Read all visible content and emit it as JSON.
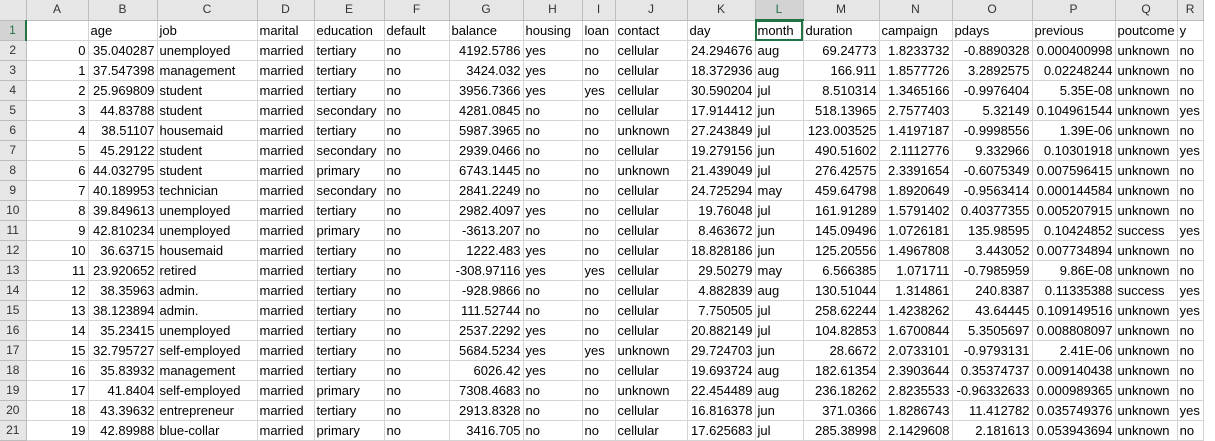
{
  "columns": [
    "A",
    "B",
    "C",
    "D",
    "E",
    "F",
    "G",
    "H",
    "I",
    "J",
    "K",
    "L",
    "M",
    "N",
    "O",
    "P",
    "Q",
    "R"
  ],
  "numeric_columns": [
    0,
    1,
    6,
    10,
    12,
    13,
    14,
    15
  ],
  "active_cell": {
    "row": 0,
    "col": 11
  },
  "rows": [
    [
      "",
      "age",
      "job",
      "marital",
      "education",
      "default",
      "balance",
      "housing",
      "loan",
      "contact",
      "day",
      "month",
      "duration",
      "campaign",
      "pdays",
      "previous",
      "poutcome",
      "y"
    ],
    [
      "0",
      "35.040287",
      "unemployed",
      "married",
      "tertiary",
      "no",
      "4192.5786",
      "yes",
      "no",
      "cellular",
      "24.294676",
      "aug",
      "69.24773",
      "1.8233732",
      "-0.8890328",
      "0.000400998",
      "unknown",
      "no"
    ],
    [
      "1",
      "37.547398",
      "management",
      "married",
      "tertiary",
      "no",
      "3424.032",
      "yes",
      "no",
      "cellular",
      "18.372936",
      "aug",
      "166.911",
      "1.8577726",
      "3.2892575",
      "0.02248244",
      "unknown",
      "no"
    ],
    [
      "2",
      "25.969809",
      "student",
      "married",
      "tertiary",
      "no",
      "3956.7366",
      "yes",
      "yes",
      "cellular",
      "30.590204",
      "jul",
      "8.510314",
      "1.3465166",
      "-0.9976404",
      "5.35E-08",
      "unknown",
      "no"
    ],
    [
      "3",
      "44.83788",
      "student",
      "married",
      "secondary",
      "no",
      "4281.0845",
      "no",
      "no",
      "cellular",
      "17.914412",
      "jun",
      "518.13965",
      "2.7577403",
      "5.32149",
      "0.104961544",
      "unknown",
      "yes"
    ],
    [
      "4",
      "38.51107",
      "housemaid",
      "married",
      "tertiary",
      "no",
      "5987.3965",
      "no",
      "no",
      "unknown",
      "27.243849",
      "jul",
      "123.003525",
      "1.4197187",
      "-0.9998556",
      "1.39E-06",
      "unknown",
      "no"
    ],
    [
      "5",
      "45.29122",
      "student",
      "married",
      "secondary",
      "no",
      "2939.0466",
      "no",
      "no",
      "cellular",
      "19.279156",
      "jun",
      "490.51602",
      "2.1112776",
      "9.332966",
      "0.10301918",
      "unknown",
      "yes"
    ],
    [
      "6",
      "44.032795",
      "student",
      "married",
      "primary",
      "no",
      "6743.1445",
      "no",
      "no",
      "unknown",
      "21.439049",
      "jul",
      "276.42575",
      "2.3391654",
      "-0.6075349",
      "0.007596415",
      "unknown",
      "no"
    ],
    [
      "7",
      "40.189953",
      "technician",
      "married",
      "secondary",
      "no",
      "2841.2249",
      "no",
      "no",
      "cellular",
      "24.725294",
      "may",
      "459.64798",
      "1.8920649",
      "-0.9563414",
      "0.000144584",
      "unknown",
      "no"
    ],
    [
      "8",
      "39.849613",
      "unemployed",
      "married",
      "tertiary",
      "no",
      "2982.4097",
      "yes",
      "no",
      "cellular",
      "19.76048",
      "jul",
      "161.91289",
      "1.5791402",
      "0.40377355",
      "0.005207915",
      "unknown",
      "no"
    ],
    [
      "9",
      "42.810234",
      "unemployed",
      "married",
      "primary",
      "no",
      "-3613.207",
      "no",
      "no",
      "cellular",
      "8.463672",
      "jun",
      "145.09496",
      "1.0726181",
      "135.98595",
      "0.10424852",
      "success",
      "yes"
    ],
    [
      "10",
      "36.63715",
      "housemaid",
      "married",
      "tertiary",
      "no",
      "1222.483",
      "yes",
      "no",
      "cellular",
      "18.828186",
      "jun",
      "125.20556",
      "1.4967808",
      "3.443052",
      "0.007734894",
      "unknown",
      "no"
    ],
    [
      "11",
      "23.920652",
      "retired",
      "married",
      "tertiary",
      "no",
      "-308.97116",
      "yes",
      "yes",
      "cellular",
      "29.50279",
      "may",
      "6.566385",
      "1.071711",
      "-0.7985959",
      "9.86E-08",
      "unknown",
      "no"
    ],
    [
      "12",
      "38.35963",
      "admin.",
      "married",
      "tertiary",
      "no",
      "-928.9866",
      "no",
      "no",
      "cellular",
      "4.882839",
      "aug",
      "130.51044",
      "1.314861",
      "240.8387",
      "0.11335388",
      "success",
      "yes"
    ],
    [
      "13",
      "38.123894",
      "admin.",
      "married",
      "tertiary",
      "no",
      "111.52744",
      "no",
      "no",
      "cellular",
      "7.750505",
      "jul",
      "258.62244",
      "1.4238262",
      "43.64445",
      "0.109149516",
      "unknown",
      "yes"
    ],
    [
      "14",
      "35.23415",
      "unemployed",
      "married",
      "tertiary",
      "no",
      "2537.2292",
      "yes",
      "no",
      "cellular",
      "20.882149",
      "jul",
      "104.82853",
      "1.6700844",
      "5.3505697",
      "0.008808097",
      "unknown",
      "no"
    ],
    [
      "15",
      "32.795727",
      "self-employed",
      "married",
      "tertiary",
      "no",
      "5684.5234",
      "yes",
      "yes",
      "unknown",
      "29.724703",
      "jun",
      "28.6672",
      "2.0733101",
      "-0.9793131",
      "2.41E-06",
      "unknown",
      "no"
    ],
    [
      "16",
      "35.83932",
      "management",
      "married",
      "tertiary",
      "no",
      "6026.42",
      "yes",
      "no",
      "cellular",
      "19.693724",
      "aug",
      "182.61354",
      "2.3903644",
      "0.35374737",
      "0.009140438",
      "unknown",
      "no"
    ],
    [
      "17",
      "41.8404",
      "self-employed",
      "married",
      "primary",
      "no",
      "7308.4683",
      "no",
      "no",
      "unknown",
      "22.454489",
      "aug",
      "236.18262",
      "2.8235533",
      "-0.96332633",
      "0.000989365",
      "unknown",
      "no"
    ],
    [
      "18",
      "43.39632",
      "entrepreneur",
      "married",
      "tertiary",
      "no",
      "2913.8328",
      "no",
      "no",
      "cellular",
      "16.816378",
      "jun",
      "371.0366",
      "1.8286743",
      "11.412782",
      "0.035749376",
      "unknown",
      "yes"
    ],
    [
      "19",
      "42.89988",
      "blue-collar",
      "married",
      "primary",
      "no",
      "3416.705",
      "no",
      "no",
      "cellular",
      "17.625683",
      "jul",
      "285.38998",
      "2.1429608",
      "2.181613",
      "0.053943694",
      "unknown",
      "no"
    ]
  ],
  "colors": {
    "accent": "#217346",
    "header_bg": "#e6e6e6",
    "grid": "#d4d4d4"
  }
}
